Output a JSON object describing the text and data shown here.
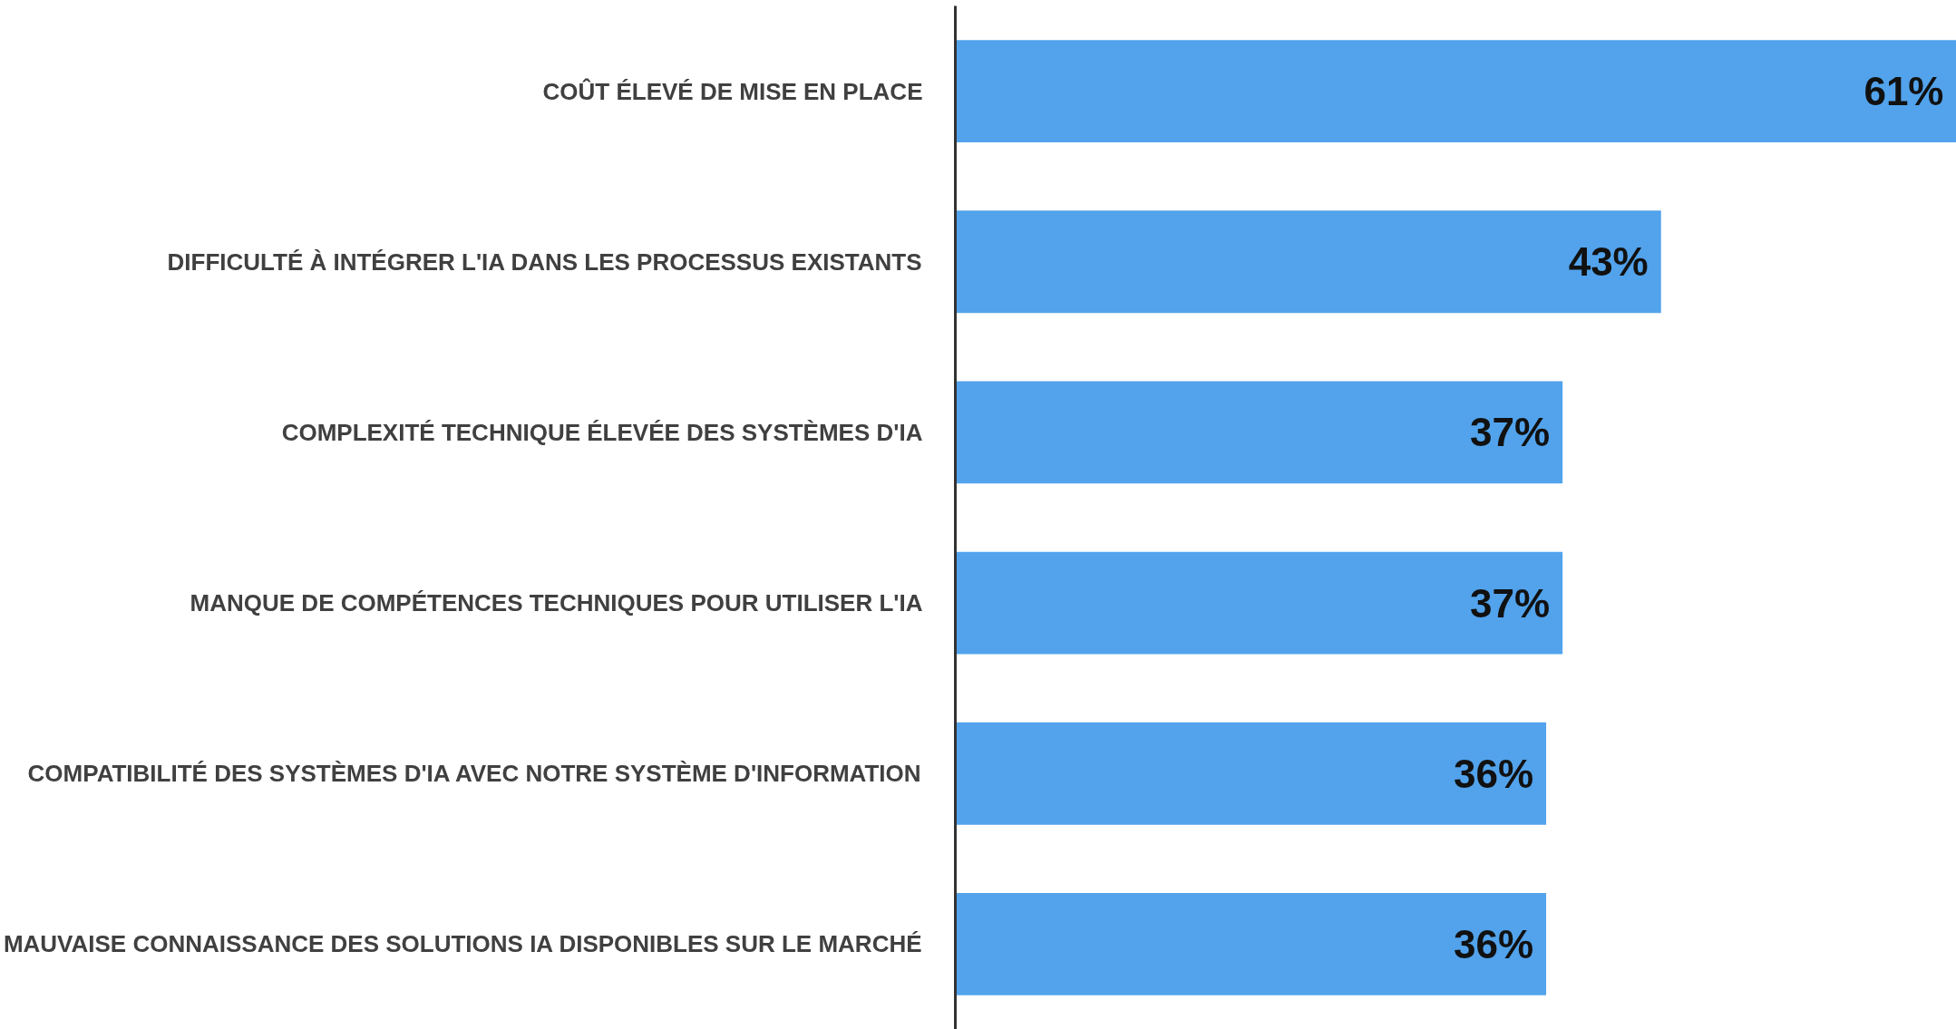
{
  "chart_data": {
    "type": "bar",
    "orientation": "horizontal",
    "categories": [
      "COÛT ÉLEVÉ DE MISE EN PLACE",
      "DIFFICULTÉ À INTÉGRER L'IA DANS LES PROCESSUS EXISTANTS",
      "COMPLEXITÉ TECHNIQUE ÉLEVÉE DES SYSTÈMES D'IA",
      "MANQUE DE COMPÉTENCES TECHNIQUES POUR UTILISER L'IA",
      "COMPATIBILITÉ DES SYSTÈMES D'IA AVEC NOTRE SYSTÈME D'INFORMATION",
      "MAUVAISE CONNAISSANCE DES SOLUTIONS IA DISPONIBLES SUR LE MARCHÉ"
    ],
    "values": [
      61,
      43,
      37,
      37,
      36,
      36
    ],
    "color": "#52a3ec",
    "data_labels": true,
    "value_labels": [
      "61%",
      "43%",
      "37%",
      "37%",
      "36%",
      "36%"
    ],
    "tick_labels": "y",
    "grid": false
  }
}
